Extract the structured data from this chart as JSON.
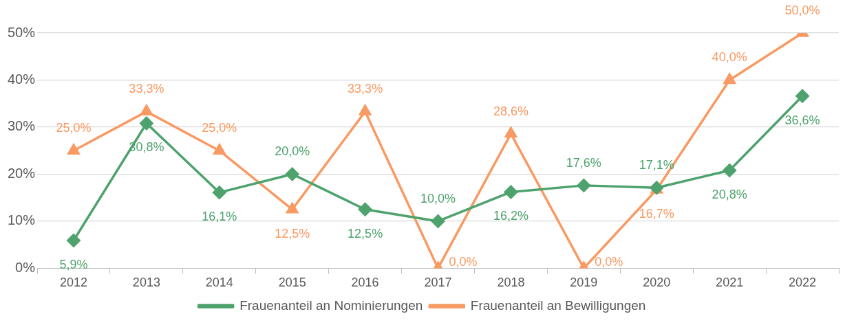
{
  "chart_data": {
    "type": "line",
    "categories": [
      "2012",
      "2013",
      "2014",
      "2015",
      "2016",
      "2017",
      "2018",
      "2019",
      "2020",
      "2021",
      "2022"
    ],
    "series": [
      {
        "name": "Frauenanteil an Nominierungen",
        "color": "#4ea26d",
        "marker": "diamond",
        "values": [
          5.9,
          30.8,
          16.1,
          20.0,
          12.5,
          10.0,
          16.2,
          17.6,
          17.1,
          20.8,
          36.6
        ],
        "value_labels": [
          "5,9%",
          "30,8%",
          "16,1%",
          "20,0%",
          "12,5%",
          "10,0%",
          "16,2%",
          "17,6%",
          "17,1%",
          "20,8%",
          "36,6%"
        ]
      },
      {
        "name": "Frauenanteil an Bewilligungen",
        "color": "#f89a63",
        "marker": "triangle",
        "values": [
          25.0,
          33.3,
          25.0,
          12.5,
          33.3,
          0.0,
          28.6,
          0.0,
          16.7,
          40.0,
          50.0
        ],
        "value_labels": [
          "25,0%",
          "33,3%",
          "25,0%",
          "12,5%",
          "33,3%",
          "0,0%",
          "28,6%",
          "0,0%",
          "16,7%",
          "40,0%",
          "50,0%"
        ]
      }
    ],
    "ylim": [
      0,
      50
    ],
    "yticks": [
      {
        "value": 0,
        "label": "0%"
      },
      {
        "value": 10,
        "label": "10%"
      },
      {
        "value": 20,
        "label": "20%"
      },
      {
        "value": 30,
        "label": "30%"
      },
      {
        "value": 40,
        "label": "40%"
      },
      {
        "value": 50,
        "label": "50%"
      }
    ],
    "grid": "y",
    "legend": "bottom",
    "line_style": "solid"
  }
}
